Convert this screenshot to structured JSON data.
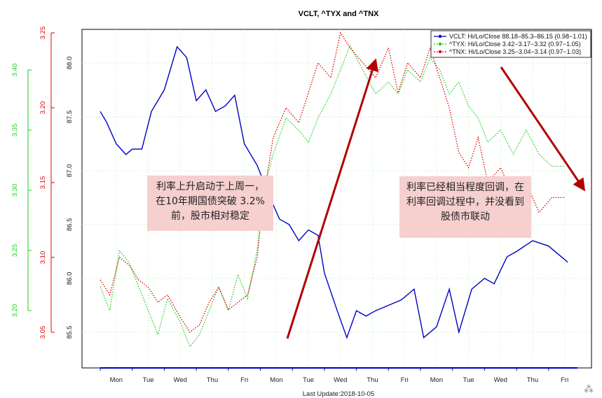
{
  "chart_data": {
    "type": "line",
    "title": "VCLT, ^TYX and ^TNX",
    "footer": "Last Update:2018-10-05",
    "x_tick_labels": [
      "Mon",
      "Tue",
      "Wed",
      "Thu",
      "Fri",
      "Mon",
      "Tue",
      "Wed",
      "Thu",
      "Fri",
      "Mon",
      "Tue",
      "Wed",
      "Thu",
      "Fri"
    ],
    "axes": {
      "vclt": {
        "ticks": [
          "85.5",
          "86.0",
          "86.5",
          "87.0",
          "87.5",
          "88.0"
        ],
        "color": "#111111"
      },
      "tnx": {
        "ticks": [
          "3.05",
          "3.10",
          "3.15",
          "3.20",
          "3.25"
        ],
        "color": "#e00000"
      },
      "tyx": {
        "ticks": [
          "3.20",
          "3.25",
          "3.30",
          "3.35",
          "3.40"
        ],
        "color": "#22cc22"
      }
    },
    "legend_position": "top-right",
    "grid": true,
    "series": [
      {
        "name": "VCLT: Hi/Lo/Close 88.18–85.3–86.15 (0.98−1.01)",
        "color": "#0000c0",
        "style": "solid",
        "x": [
          0,
          0.2,
          0.5,
          0.8,
          1.0,
          1.3,
          1.6,
          2.0,
          2.4,
          2.7,
          3.0,
          3.3,
          3.6,
          3.9,
          4.2,
          4.5,
          4.9,
          5.3,
          5.6,
          5.9,
          6.2,
          6.5,
          6.8,
          7.0,
          7.4,
          7.7,
          8.0,
          8.3,
          8.6,
          9.0,
          9.4,
          9.8,
          10.1,
          10.5,
          10.9,
          11.2,
          11.6,
          12.0,
          12.3,
          12.7,
          13.0,
          13.5,
          14.0,
          14.4,
          14.6
        ],
        "values": [
          87.55,
          87.45,
          87.25,
          87.15,
          87.2,
          87.2,
          87.55,
          87.75,
          88.15,
          88.05,
          87.65,
          87.75,
          87.55,
          87.6,
          87.7,
          87.25,
          87.05,
          86.75,
          86.55,
          86.5,
          86.35,
          86.45,
          86.4,
          86.05,
          85.7,
          85.45,
          85.7,
          85.65,
          85.7,
          85.75,
          85.8,
          85.9,
          85.45,
          85.55,
          85.9,
          85.5,
          85.9,
          86.0,
          85.95,
          86.2,
          86.25,
          86.35,
          86.3,
          86.2,
          86.15
        ]
      },
      {
        "name": "^TYX: Hi/Lo/Close 3.42−3.17−3.32 (0.97−1.05)",
        "color": "#22cc22",
        "style": "dotted",
        "x": [
          0,
          0.3,
          0.6,
          0.9,
          1.2,
          1.5,
          1.8,
          2.1,
          2.5,
          2.8,
          3.1,
          3.4,
          3.7,
          4.0,
          4.3,
          4.6,
          4.9,
          5.1,
          5.4,
          5.8,
          6.2,
          6.5,
          6.8,
          7.2,
          7.5,
          7.8,
          8.2,
          8.6,
          9.0,
          9.3,
          9.6,
          10.0,
          10.3,
          10.6,
          10.9,
          11.2,
          11.5,
          11.8,
          12.1,
          12.5,
          12.9,
          13.3,
          13.7,
          14.1,
          14.5
        ],
        "values": [
          3.22,
          3.2,
          3.25,
          3.24,
          3.22,
          3.2,
          3.18,
          3.21,
          3.19,
          3.17,
          3.18,
          3.2,
          3.22,
          3.2,
          3.23,
          3.21,
          3.25,
          3.3,
          3.33,
          3.36,
          3.35,
          3.34,
          3.36,
          3.38,
          3.4,
          3.42,
          3.4,
          3.38,
          3.39,
          3.38,
          3.4,
          3.39,
          3.41,
          3.4,
          3.38,
          3.39,
          3.37,
          3.36,
          3.34,
          3.35,
          3.33,
          3.35,
          3.33,
          3.32,
          3.32
        ]
      },
      {
        "name": "^TNX: Hi/Lo/Close 3.25−3.04−3.14 (0.97−1.03)",
        "color": "#e00000",
        "style": "dotted",
        "x": [
          0,
          0.3,
          0.6,
          0.9,
          1.2,
          1.5,
          1.8,
          2.1,
          2.5,
          2.8,
          3.1,
          3.4,
          3.7,
          4.0,
          4.3,
          4.6,
          4.9,
          5.1,
          5.4,
          5.8,
          6.2,
          6.5,
          6.8,
          7.2,
          7.5,
          7.8,
          8.2,
          8.6,
          9.0,
          9.3,
          9.6,
          10.0,
          10.3,
          10.6,
          10.9,
          11.2,
          11.5,
          11.8,
          12.1,
          12.5,
          12.9,
          13.3,
          13.7,
          14.1,
          14.5
        ],
        "values": [
          3.085,
          3.075,
          3.1,
          3.095,
          3.085,
          3.08,
          3.07,
          3.075,
          3.06,
          3.05,
          3.055,
          3.07,
          3.08,
          3.065,
          3.07,
          3.075,
          3.1,
          3.14,
          3.18,
          3.2,
          3.19,
          3.21,
          3.23,
          3.22,
          3.25,
          3.24,
          3.23,
          3.22,
          3.24,
          3.21,
          3.23,
          3.22,
          3.24,
          3.22,
          3.2,
          3.17,
          3.16,
          3.18,
          3.15,
          3.16,
          3.14,
          3.15,
          3.13,
          3.14,
          3.14
        ]
      }
    ],
    "annotations": [
      "利率上升启动于上周一，在10年期国债突破 3.2%前，股市相对稳定",
      "利率已经相当程度回调，在利率回调过程中，并没看到股债市联动"
    ]
  }
}
